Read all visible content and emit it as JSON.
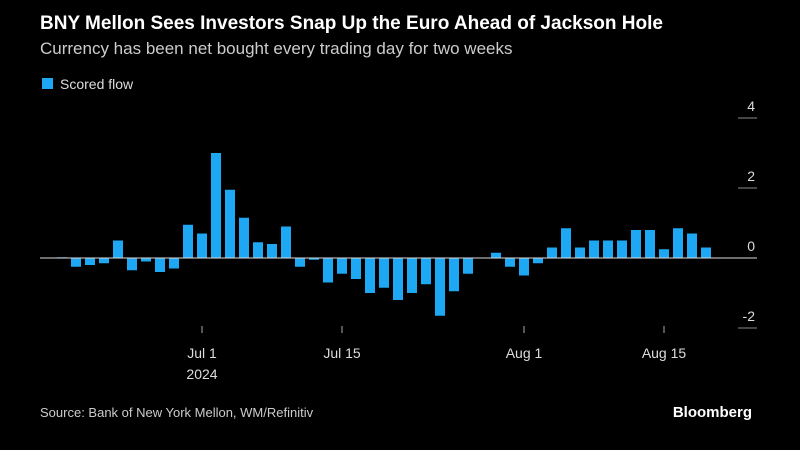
{
  "chart_data": {
    "type": "bar",
    "title": "BNY Mellon Sees Investors Snap Up the Euro Ahead of Jackson Hole",
    "subtitle": "Currency has been net bought every trading day for two weeks",
    "source": "Source: Bank of New York Mellon, WM/Refinitiv",
    "brand": "Bloomberg",
    "year_label": "2024",
    "categories": [
      null,
      null,
      null,
      null,
      null,
      null,
      null,
      null,
      null,
      null,
      "Jul 1",
      null,
      null,
      null,
      null,
      null,
      null,
      null,
      null,
      null,
      "Jul 15",
      null,
      null,
      null,
      null,
      null,
      null,
      null,
      null,
      null,
      null,
      null,
      null,
      "Aug 1",
      null,
      null,
      null,
      null,
      null,
      null,
      null,
      null,
      null,
      "Aug 15",
      null,
      null,
      null
    ],
    "series": [
      {
        "name": "Scored flow",
        "color": "#1ea7f2",
        "values": [
          0.02,
          -0.25,
          -0.2,
          -0.15,
          0.5,
          -0.35,
          -0.1,
          -0.4,
          -0.3,
          0.95,
          0.7,
          3.0,
          1.95,
          1.15,
          0.45,
          0.4,
          0.9,
          -0.25,
          -0.05,
          -0.7,
          -0.45,
          -0.6,
          -1.0,
          -0.85,
          -1.2,
          -1.0,
          -0.75,
          -1.65,
          -0.95,
          -0.45,
          0.0,
          0.15,
          -0.25,
          -0.5,
          -0.15,
          0.3,
          0.85,
          0.3,
          0.5,
          0.5,
          0.5,
          0.8,
          0.8,
          0.25,
          0.85,
          0.7,
          0.3
        ]
      }
    ],
    "ylim": [
      -2,
      4
    ],
    "yticks": [
      -2,
      0,
      2,
      4
    ]
  }
}
